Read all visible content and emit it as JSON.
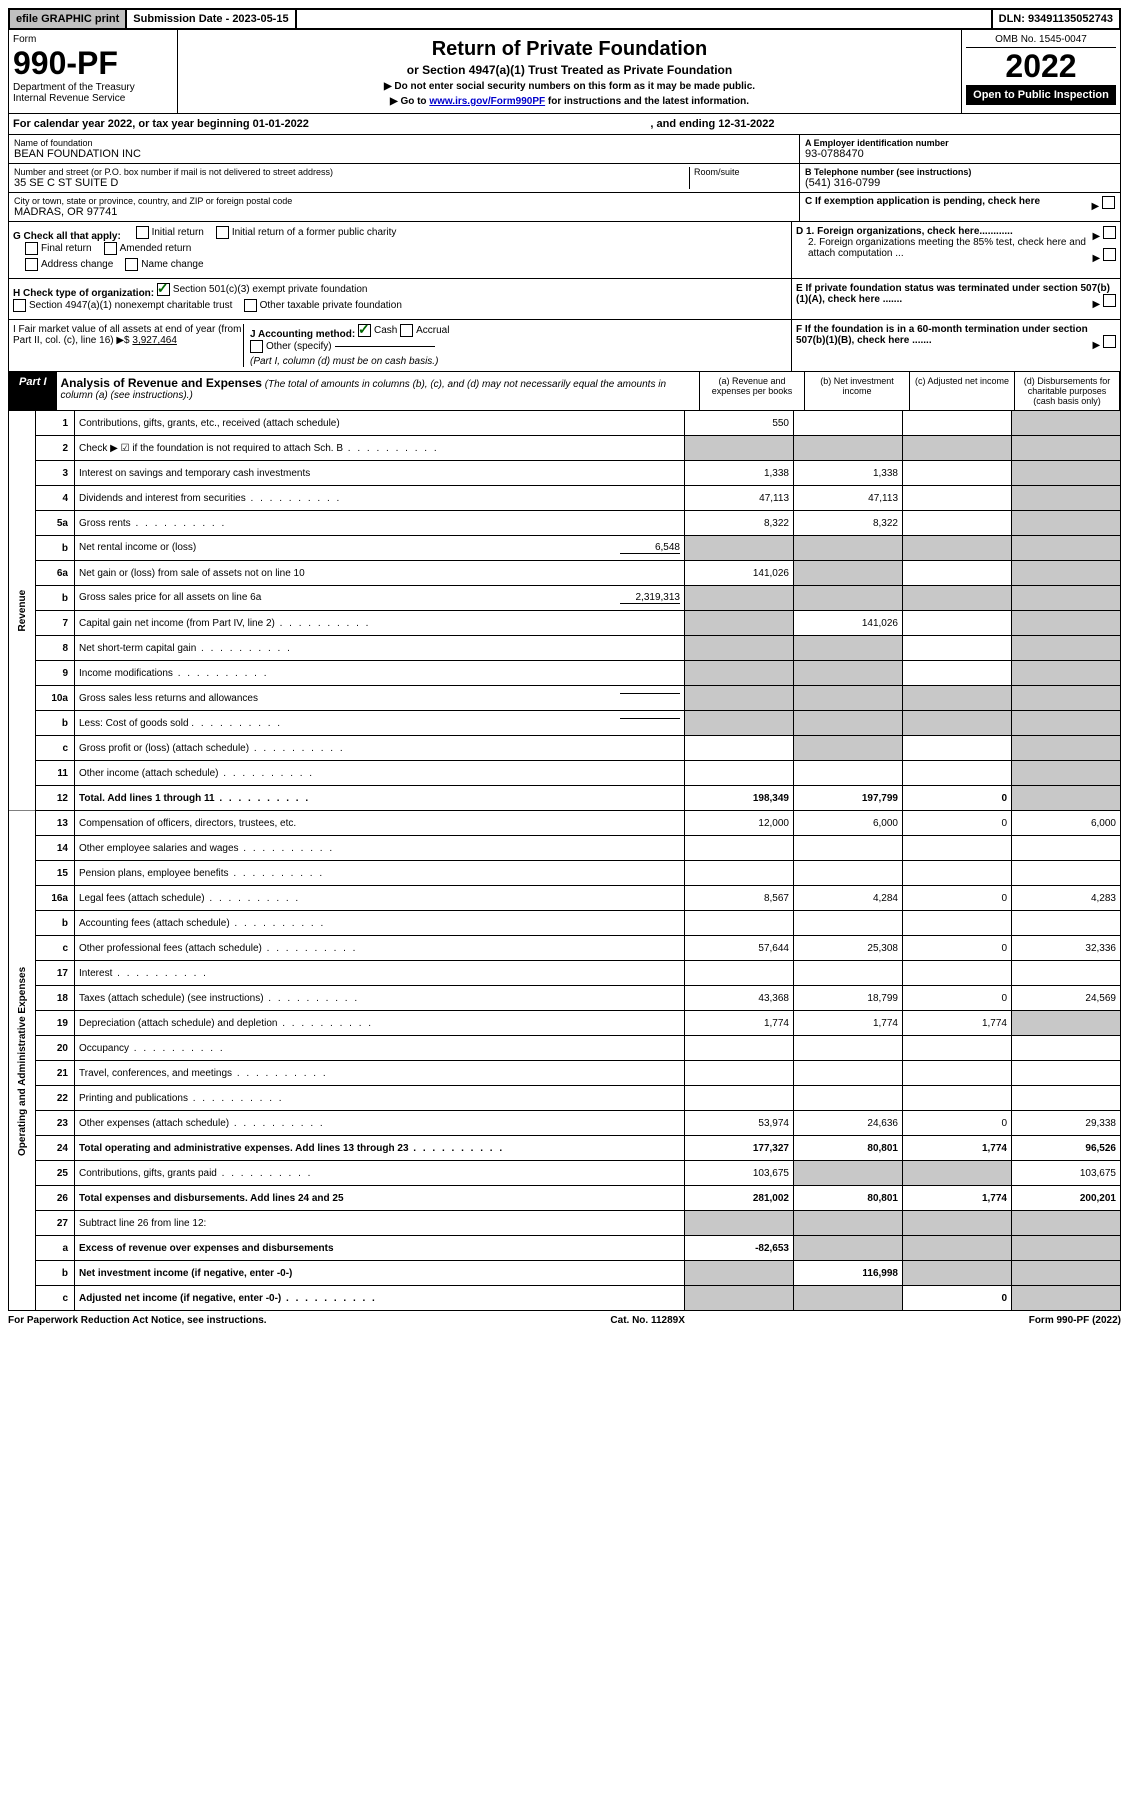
{
  "topbar": {
    "efile": "efile GRAPHIC print",
    "sub_label": "Submission Date - 2023-05-15",
    "dln": "DLN: 93491135052743"
  },
  "header": {
    "form_label": "Form",
    "form_num": "990-PF",
    "dept": "Department of the Treasury\nInternal Revenue Service",
    "title": "Return of Private Foundation",
    "subtitle": "or Section 4947(a)(1) Trust Treated as Private Foundation",
    "note1": "▶ Do not enter social security numbers on this form as it may be made public.",
    "note2_pre": "▶ Go to ",
    "note2_link": "www.irs.gov/Form990PF",
    "note2_post": " for instructions and the latest information.",
    "omb": "OMB No. 1545-0047",
    "year": "2022",
    "open": "Open to Public Inspection"
  },
  "calyear": {
    "text": "For calendar year 2022, or tax year beginning 01-01-2022",
    "ending": ", and ending 12-31-2022"
  },
  "info": {
    "name_label": "Name of foundation",
    "name": "BEAN FOUNDATION INC",
    "addr_label": "Number and street (or P.O. box number if mail is not delivered to street address)",
    "addr": "35 SE C ST SUITE D",
    "room_label": "Room/suite",
    "city_label": "City or town, state or province, country, and ZIP or foreign postal code",
    "city": "MADRAS, OR  97741",
    "a_label": "A Employer identification number",
    "a_val": "93-0788470",
    "b_label": "B Telephone number (see instructions)",
    "b_val": "(541) 316-0799",
    "c_label": "C If exemption application is pending, check here",
    "d1": "D 1. Foreign organizations, check here............",
    "d2": "2. Foreign organizations meeting the 85% test, check here and attach computation ...",
    "e": "E  If private foundation status was terminated under section 507(b)(1)(A), check here .......",
    "f": "F  If the foundation is in a 60-month termination under section 507(b)(1)(B), check here .......",
    "g": "G Check all that apply:",
    "g_opts": [
      "Initial return",
      "Initial return of a former public charity",
      "Final return",
      "Amended return",
      "Address change",
      "Name change"
    ],
    "h": "H Check type of organization:",
    "h_opt1": "Section 501(c)(3) exempt private foundation",
    "h_opt2": "Section 4947(a)(1) nonexempt charitable trust",
    "h_opt3": "Other taxable private foundation",
    "i": "I Fair market value of all assets at end of year (from Part II, col. (c), line 16) ▶$",
    "i_val": "3,927,464",
    "j": "J Accounting method:",
    "j_cash": "Cash",
    "j_accrual": "Accrual",
    "j_other": "Other (specify)",
    "j_note": "(Part I, column (d) must be on cash basis.)"
  },
  "part1": {
    "label": "Part I",
    "title": "Analysis of Revenue and Expenses",
    "note": "(The total of amounts in columns (b), (c), and (d) may not necessarily equal the amounts in column (a) (see instructions).)",
    "col_a": "(a) Revenue and expenses per books",
    "col_b": "(b) Net investment income",
    "col_c": "(c) Adjusted net income",
    "col_d": "(d) Disbursements for charitable purposes (cash basis only)"
  },
  "side_labels": {
    "revenue": "Revenue",
    "expenses": "Operating and Administrative Expenses"
  },
  "rows": [
    {
      "n": "1",
      "desc": "Contributions, gifts, grants, etc., received (attach schedule)",
      "a": "550",
      "b": "",
      "c": "",
      "d": "",
      "shade": [
        "d"
      ]
    },
    {
      "n": "2",
      "desc": "Check ▶ ☑ if the foundation is not required to attach Sch. B",
      "a": "",
      "b": "",
      "c": "",
      "d": "",
      "shade": [
        "a",
        "b",
        "c",
        "d"
      ],
      "dots": true
    },
    {
      "n": "3",
      "desc": "Interest on savings and temporary cash investments",
      "a": "1,338",
      "b": "1,338",
      "c": "",
      "d": "",
      "shade": [
        "d"
      ]
    },
    {
      "n": "4",
      "desc": "Dividends and interest from securities",
      "a": "47,113",
      "b": "47,113",
      "c": "",
      "d": "",
      "shade": [
        "d"
      ],
      "dots": true
    },
    {
      "n": "5a",
      "desc": "Gross rents",
      "a": "8,322",
      "b": "8,322",
      "c": "",
      "d": "",
      "shade": [
        "d"
      ],
      "dots": true
    },
    {
      "n": "b",
      "desc": "Net rental income or (loss)",
      "inline": "6,548",
      "a": "",
      "b": "",
      "c": "",
      "d": "",
      "shade": [
        "a",
        "b",
        "c",
        "d"
      ]
    },
    {
      "n": "6a",
      "desc": "Net gain or (loss) from sale of assets not on line 10",
      "a": "141,026",
      "b": "",
      "c": "",
      "d": "",
      "shade": [
        "b",
        "d"
      ]
    },
    {
      "n": "b",
      "desc": "Gross sales price for all assets on line 6a",
      "inline": "2,319,313",
      "a": "",
      "b": "",
      "c": "",
      "d": "",
      "shade": [
        "a",
        "b",
        "c",
        "d"
      ]
    },
    {
      "n": "7",
      "desc": "Capital gain net income (from Part IV, line 2)",
      "a": "",
      "b": "141,026",
      "c": "",
      "d": "",
      "shade": [
        "a",
        "d"
      ],
      "dots": true
    },
    {
      "n": "8",
      "desc": "Net short-term capital gain",
      "a": "",
      "b": "",
      "c": "",
      "d": "",
      "shade": [
        "a",
        "b",
        "d"
      ],
      "dots": true
    },
    {
      "n": "9",
      "desc": "Income modifications",
      "a": "",
      "b": "",
      "c": "",
      "d": "",
      "shade": [
        "a",
        "b",
        "d"
      ],
      "dots": true
    },
    {
      "n": "10a",
      "desc": "Gross sales less returns and allowances",
      "inline": " ",
      "a": "",
      "b": "",
      "c": "",
      "d": "",
      "shade": [
        "a",
        "b",
        "c",
        "d"
      ]
    },
    {
      "n": "b",
      "desc": "Less: Cost of goods sold",
      "inline": " ",
      "a": "",
      "b": "",
      "c": "",
      "d": "",
      "shade": [
        "a",
        "b",
        "c",
        "d"
      ],
      "dots": true
    },
    {
      "n": "c",
      "desc": "Gross profit or (loss) (attach schedule)",
      "a": "",
      "b": "",
      "c": "",
      "d": "",
      "shade": [
        "b",
        "d"
      ],
      "dots": true
    },
    {
      "n": "11",
      "desc": "Other income (attach schedule)",
      "a": "",
      "b": "",
      "c": "",
      "d": "",
      "shade": [
        "d"
      ],
      "dots": true
    },
    {
      "n": "12",
      "desc": "Total. Add lines 1 through 11",
      "a": "198,349",
      "b": "197,799",
      "c": "0",
      "d": "",
      "shade": [
        "d"
      ],
      "bold": true,
      "dots": true
    },
    {
      "n": "13",
      "desc": "Compensation of officers, directors, trustees, etc.",
      "a": "12,000",
      "b": "6,000",
      "c": "0",
      "d": "6,000"
    },
    {
      "n": "14",
      "desc": "Other employee salaries and wages",
      "a": "",
      "b": "",
      "c": "",
      "d": "",
      "dots": true
    },
    {
      "n": "15",
      "desc": "Pension plans, employee benefits",
      "a": "",
      "b": "",
      "c": "",
      "d": "",
      "dots": true
    },
    {
      "n": "16a",
      "desc": "Legal fees (attach schedule)",
      "a": "8,567",
      "b": "4,284",
      "c": "0",
      "d": "4,283",
      "dots": true
    },
    {
      "n": "b",
      "desc": "Accounting fees (attach schedule)",
      "a": "",
      "b": "",
      "c": "",
      "d": "",
      "dots": true
    },
    {
      "n": "c",
      "desc": "Other professional fees (attach schedule)",
      "a": "57,644",
      "b": "25,308",
      "c": "0",
      "d": "32,336",
      "dots": true
    },
    {
      "n": "17",
      "desc": "Interest",
      "a": "",
      "b": "",
      "c": "",
      "d": "",
      "dots": true
    },
    {
      "n": "18",
      "desc": "Taxes (attach schedule) (see instructions)",
      "a": "43,368",
      "b": "18,799",
      "c": "0",
      "d": "24,569",
      "dots": true
    },
    {
      "n": "19",
      "desc": "Depreciation (attach schedule) and depletion",
      "a": "1,774",
      "b": "1,774",
      "c": "1,774",
      "d": "",
      "shade": [
        "d"
      ],
      "dots": true
    },
    {
      "n": "20",
      "desc": "Occupancy",
      "a": "",
      "b": "",
      "c": "",
      "d": "",
      "dots": true
    },
    {
      "n": "21",
      "desc": "Travel, conferences, and meetings",
      "a": "",
      "b": "",
      "c": "",
      "d": "",
      "dots": true
    },
    {
      "n": "22",
      "desc": "Printing and publications",
      "a": "",
      "b": "",
      "c": "",
      "d": "",
      "dots": true
    },
    {
      "n": "23",
      "desc": "Other expenses (attach schedule)",
      "a": "53,974",
      "b": "24,636",
      "c": "0",
      "d": "29,338",
      "dots": true
    },
    {
      "n": "24",
      "desc": "Total operating and administrative expenses. Add lines 13 through 23",
      "a": "177,327",
      "b": "80,801",
      "c": "1,774",
      "d": "96,526",
      "bold": true,
      "dots": true
    },
    {
      "n": "25",
      "desc": "Contributions, gifts, grants paid",
      "a": "103,675",
      "b": "",
      "c": "",
      "d": "103,675",
      "shade": [
        "b",
        "c"
      ],
      "dots": true
    },
    {
      "n": "26",
      "desc": "Total expenses and disbursements. Add lines 24 and 25",
      "a": "281,002",
      "b": "80,801",
      "c": "1,774",
      "d": "200,201",
      "bold": true
    },
    {
      "n": "27",
      "desc": "Subtract line 26 from line 12:",
      "a": "",
      "b": "",
      "c": "",
      "d": "",
      "shade": [
        "a",
        "b",
        "c",
        "d"
      ]
    },
    {
      "n": "a",
      "desc": "Excess of revenue over expenses and disbursements",
      "a": "-82,653",
      "b": "",
      "c": "",
      "d": "",
      "shade": [
        "b",
        "c",
        "d"
      ],
      "bold": true
    },
    {
      "n": "b",
      "desc": "Net investment income (if negative, enter -0-)",
      "a": "",
      "b": "116,998",
      "c": "",
      "d": "",
      "shade": [
        "a",
        "c",
        "d"
      ],
      "bold": true
    },
    {
      "n": "c",
      "desc": "Adjusted net income (if negative, enter -0-)",
      "a": "",
      "b": "",
      "c": "0",
      "d": "",
      "shade": [
        "a",
        "b",
        "d"
      ],
      "bold": true,
      "dots": true
    }
  ],
  "revenue_rows": 16,
  "footer": {
    "left": "For Paperwork Reduction Act Notice, see instructions.",
    "mid": "Cat. No. 11289X",
    "right": "Form 990-PF (2022)"
  }
}
